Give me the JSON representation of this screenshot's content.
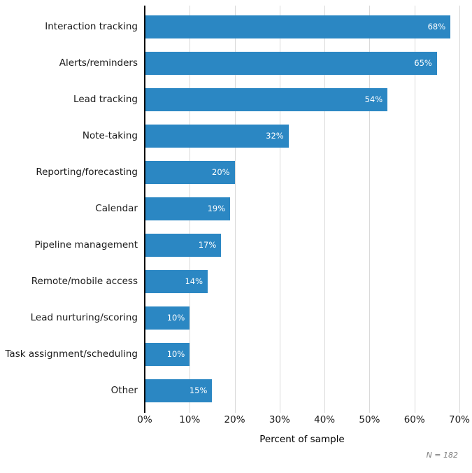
{
  "chart_data": {
    "type": "bar",
    "orientation": "horizontal",
    "categories": [
      "Interaction tracking",
      "Alerts/reminders",
      "Lead tracking",
      "Note-taking",
      "Reporting/forecasting",
      "Calendar",
      "Pipeline management",
      "Remote/mobile access",
      "Lead nurturing/scoring",
      "Task assignment/scheduling",
      "Other"
    ],
    "values": [
      68,
      65,
      54,
      32,
      20,
      19,
      17,
      14,
      10,
      10,
      15
    ],
    "value_labels": [
      "68%",
      "65%",
      "54%",
      "32%",
      "20%",
      "19%",
      "17%",
      "14%",
      "10%",
      "10%",
      "15%"
    ],
    "xlabel": "Percent of sample",
    "x_ticks": [
      "0%",
      "10%",
      "20%",
      "30%",
      "40%",
      "50%",
      "60%",
      "70%"
    ],
    "xlim": [
      0,
      70
    ],
    "grid": true,
    "legend": false,
    "note": "N = 182",
    "colors": {
      "bar": "#2b87c3",
      "gridline": "#d9d9d9",
      "axis": "#000000",
      "value_label": "#ffffff",
      "label_text": "#1a1a1a",
      "note_text": "#808080"
    }
  }
}
